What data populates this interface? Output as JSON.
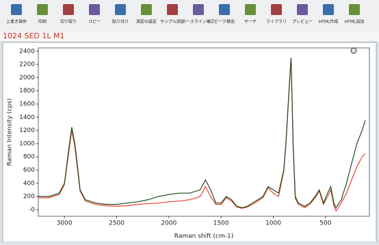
{
  "toolbar": {
    "buttons": [
      "上書き保存",
      "印刷",
      "切り取り",
      "コピー",
      "貼り付け",
      "測定の設定",
      "サンプル測定",
      "ベースライン補正",
      "ピーク検出",
      "サーチ",
      "ライブラリ",
      "プレビュー",
      "HTML作成",
      "HTML追加"
    ]
  },
  "document": {
    "title": "1024 SED 1L M1"
  },
  "chart_data": {
    "type": "line",
    "xlabel": "Raman shift (cm-1)",
    "ylabel": "Raman Intensity (cps)",
    "x": [
      3250,
      3150,
      3050,
      3000,
      2960,
      2930,
      2900,
      2870,
      2850,
      2800,
      2700,
      2600,
      2500,
      2400,
      2300,
      2200,
      2100,
      2000,
      1900,
      1800,
      1700,
      1650,
      1600,
      1550,
      1500,
      1450,
      1400,
      1350,
      1300,
      1250,
      1200,
      1100,
      1050,
      1000,
      950,
      900,
      880,
      850,
      830,
      810,
      790,
      760,
      700,
      650,
      600,
      560,
      520,
      480,
      450,
      420,
      400,
      350,
      300,
      250,
      200,
      150,
      120
    ],
    "series": [
      {
        "color": "#1f4a1f",
        "values": [
          200,
          200,
          250,
          400,
          900,
          1250,
          1000,
          600,
          300,
          150,
          100,
          80,
          80,
          100,
          120,
          150,
          200,
          230,
          250,
          250,
          300,
          450,
          300,
          100,
          100,
          200,
          150,
          50,
          30,
          50,
          100,
          200,
          350,
          300,
          250,
          600,
          1000,
          1800,
          2300,
          1000,
          200,
          100,
          50,
          100,
          200,
          300,
          100,
          250,
          350,
          100,
          30,
          150,
          400,
          700,
          1000,
          1200,
          1350
        ]
      },
      {
        "color": "#e8432c",
        "values": [
          180,
          180,
          230,
          380,
          850,
          1200,
          950,
          550,
          280,
          130,
          80,
          60,
          50,
          60,
          80,
          90,
          100,
          120,
          130,
          150,
          200,
          350,
          200,
          80,
          80,
          180,
          130,
          40,
          20,
          40,
          80,
          180,
          330,
          250,
          200,
          580,
          980,
          1780,
          2300,
          950,
          170,
          80,
          30,
          80,
          180,
          280,
          80,
          200,
          300,
          60,
          -20,
          100,
          250,
          450,
          650,
          800,
          850
        ]
      }
    ],
    "xlim": [
      3250,
      80
    ],
    "ylim": [
      -100,
      2450
    ],
    "xticks": [
      3000,
      2500,
      2000,
      1500,
      1000,
      500
    ],
    "yticks": [
      {
        "value": 0,
        "label": "-0"
      },
      200,
      400,
      600,
      800,
      1000,
      1200,
      1400,
      1600,
      1800,
      2000,
      2200,
      2400
    ]
  }
}
